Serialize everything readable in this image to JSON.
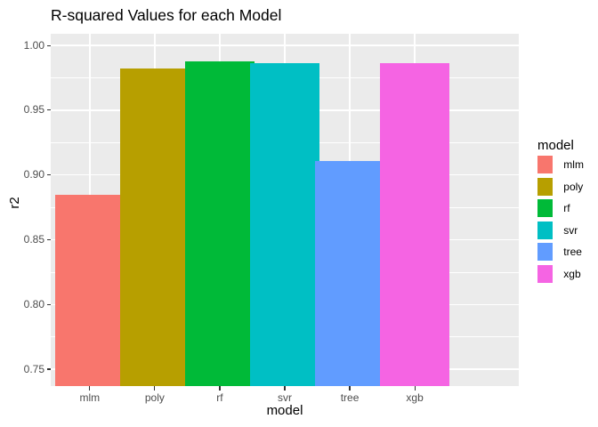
{
  "chart_data": {
    "type": "bar",
    "title": "R-squared Values for each Model",
    "xlabel": "model",
    "ylabel": "r2",
    "categories": [
      "mlm",
      "poly",
      "rf",
      "svr",
      "tree",
      "xgb"
    ],
    "values": [
      0.885,
      0.982,
      0.988,
      0.986,
      0.911,
      0.986
    ],
    "bar_colors": [
      "#F8766D",
      "#B79F00",
      "#00BA38",
      "#00BFC4",
      "#619CFF",
      "#F564E3"
    ],
    "ylim": [
      0.737,
      1.009
    ],
    "yticks": [
      0.75,
      0.8,
      0.85,
      0.9,
      0.95,
      1.0
    ],
    "ytick_labels": [
      "0.75",
      "0.80",
      "0.85",
      "0.90",
      "0.95",
      "1.00"
    ],
    "yminor_ticks": [
      0.775,
      0.825,
      0.875,
      0.925,
      0.975
    ],
    "grid": "horizontal major + minor, vertical major at categories",
    "legend": {
      "position": "right",
      "title": "model",
      "entries": [
        {
          "label": "mlm",
          "color": "#F8766D"
        },
        {
          "label": "poly",
          "color": "#B79F00"
        },
        {
          "label": "rf",
          "color": "#00BA38"
        },
        {
          "label": "svr",
          "color": "#00BFC4"
        },
        {
          "label": "tree",
          "color": "#619CFF"
        },
        {
          "label": "xgb",
          "color": "#F564E3"
        }
      ]
    },
    "colors": {
      "panel_bg": "#EBEBEB",
      "grid": "#FFFFFF",
      "tick": "#333333",
      "tick_label": "#4D4D4D",
      "text": "#000000"
    }
  }
}
